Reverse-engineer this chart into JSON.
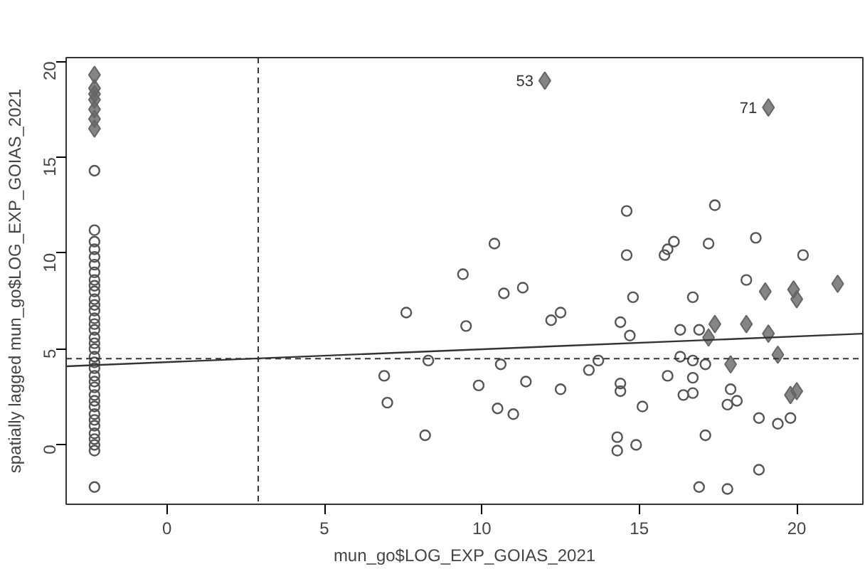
{
  "chart_data": {
    "type": "scatter",
    "xlabel": "mun_go$LOG_EXP_GOIAS_2021",
    "ylabel": "spatially lagged mun_go$LOG_EXP_GOIAS_2021",
    "xlim": [
      -3.2,
      22.1
    ],
    "ylim": [
      -3.1,
      20.2
    ],
    "xticks": [
      0,
      5,
      10,
      15,
      20
    ],
    "yticks": [
      0,
      5,
      10,
      15,
      20
    ],
    "grid": false,
    "series": [
      {
        "marker": "circle",
        "color": "#555555",
        "x": [
          -2.3,
          -2.3,
          -2.3,
          -2.3,
          -2.3,
          -2.3,
          -2.3,
          -2.3,
          -2.3,
          -2.3,
          -2.3,
          -2.3,
          -2.3,
          -2.3,
          -2.3,
          -2.3,
          -2.3,
          -2.3,
          -2.3,
          -2.3,
          -2.3,
          -2.3,
          -2.3,
          -2.3,
          -2.3,
          -2.3,
          -2.3,
          -2.3,
          -2.3,
          -2.3,
          -2.3,
          -2.3,
          -2.3,
          -2.3,
          -2.3,
          -2.3,
          7.6,
          6.9,
          7.0,
          8.2,
          8.3,
          9.4,
          9.5,
          9.9,
          10.4,
          10.7,
          11.3,
          10.6,
          10.5,
          11.0,
          11.4,
          12.2,
          12.5,
          12.5,
          13.4,
          13.7,
          14.4,
          14.7,
          14.6,
          14.6,
          14.8,
          14.4,
          14.4,
          14.3,
          14.3,
          14.9,
          15.1,
          15.8,
          16.1,
          15.9,
          15.9,
          16.3,
          16.3,
          16.7,
          16.7,
          16.7,
          16.9,
          17.1,
          17.2,
          17.4,
          17.8,
          17.8,
          18.1,
          17.9,
          18.7,
          18.4,
          18.8,
          18.8,
          19.4,
          19.8,
          20.2,
          16.7,
          17.1,
          16.4,
          16.9
        ],
        "values": [
          -2.2,
          -0.3,
          0.0,
          0.3,
          0.6,
          1.0,
          1.3,
          1.6,
          2.0,
          2.3,
          2.6,
          3.0,
          3.3,
          3.6,
          4.0,
          4.3,
          4.6,
          5.0,
          5.3,
          5.6,
          6.0,
          6.3,
          6.6,
          7.0,
          7.3,
          7.6,
          8.0,
          8.3,
          8.6,
          9.0,
          9.4,
          9.8,
          10.2,
          10.6,
          11.2,
          14.3,
          6.9,
          3.6,
          2.2,
          0.5,
          4.4,
          8.9,
          6.2,
          3.1,
          10.5,
          7.9,
          8.2,
          4.2,
          1.9,
          1.6,
          3.3,
          6.5,
          6.9,
          2.9,
          3.9,
          4.4,
          6.4,
          5.7,
          12.2,
          9.9,
          7.7,
          3.2,
          2.8,
          0.4,
          -0.3,
          0.0,
          2.0,
          9.9,
          10.6,
          10.2,
          3.6,
          6.0,
          4.6,
          7.7,
          3.5,
          2.7,
          -2.2,
          0.5,
          10.5,
          12.5,
          -2.3,
          2.1,
          2.3,
          2.9,
          10.8,
          8.6,
          1.4,
          -1.3,
          1.1,
          1.4,
          9.9,
          4.4,
          4.2,
          2.6,
          6.0
        ]
      },
      {
        "marker": "diamond",
        "color": "#666666",
        "x": [
          -2.3,
          -2.3,
          -2.3,
          -2.3,
          -2.3,
          -2.3,
          -2.3,
          12.0,
          19.1,
          19.0,
          19.9,
          20.0,
          21.3,
          18.4,
          19.1,
          19.4,
          17.9,
          20.0,
          19.8,
          17.4,
          17.2
        ],
        "values": [
          16.5,
          17.0,
          17.5,
          18.0,
          18.3,
          18.6,
          19.3,
          19.0,
          17.6,
          8.0,
          8.1,
          7.6,
          8.4,
          6.3,
          5.8,
          4.7,
          4.2,
          2.8,
          2.6,
          6.3,
          5.6
        ]
      },
      {
        "type": "line",
        "line_style": "solid",
        "color": "#333333",
        "x": [
          -3.2,
          22.1
        ],
        "values": [
          4.1,
          5.8
        ]
      }
    ],
    "ref_lines": [
      {
        "axis": "x",
        "value": 2.9,
        "line_style": "dashed",
        "color": "#333333"
      },
      {
        "axis": "y",
        "value": 4.5,
        "line_style": "dashed",
        "color": "#333333"
      }
    ],
    "annotations": [
      {
        "text": "53",
        "x": 12.0,
        "y": 19.0
      },
      {
        "text": "71",
        "x": 19.1,
        "y": 17.6
      }
    ]
  }
}
